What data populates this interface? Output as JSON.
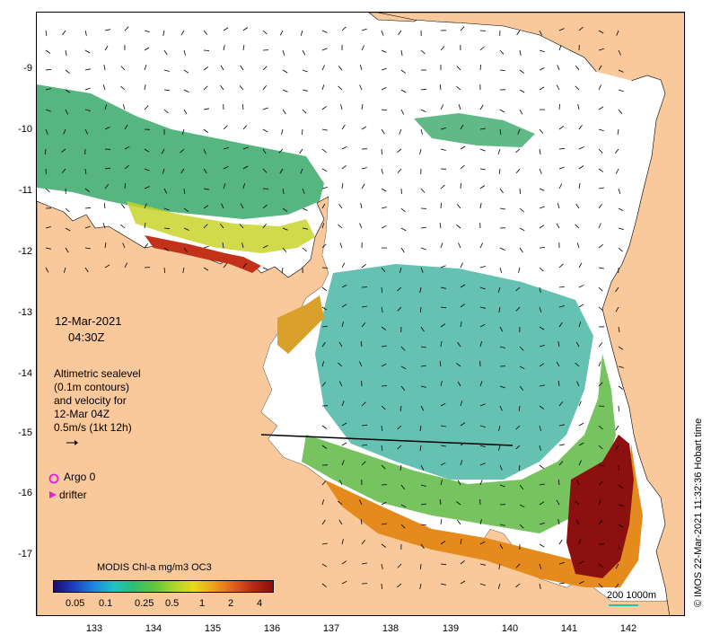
{
  "map": {
    "date": "12-Mar-2021",
    "time": "04:30Z",
    "altimetry_lines": [
      "Altimetric sealevel",
      "(0.1m contours)",
      "and velocity for",
      "12-Mar 04Z",
      "0.5m/s (1kt 12h)"
    ],
    "argo_label": "Argo 0",
    "drifter_label": "drifter",
    "colorbar_title": "MODIS Chl-a mg/m3 OC3",
    "colorbar_ticks": [
      "0.05",
      "0.1",
      "0.25",
      "0.5",
      "1",
      "2",
      "4"
    ],
    "scale_label": "200  1000m",
    "credit": "© IMOS 22-Mar-2021 11:32:36 Hobart time",
    "lat_ticks": [
      "-9",
      "-10",
      "-11",
      "-12",
      "-13",
      "-14",
      "-15",
      "-16",
      "-17"
    ],
    "lon_ticks": [
      "133",
      "134",
      "135",
      "136",
      "137",
      "138",
      "139",
      "140",
      "141",
      "142"
    ],
    "colors": {
      "land": "#f9c89b",
      "argo": "#e020e0",
      "scale": "#22c3b2"
    }
  }
}
